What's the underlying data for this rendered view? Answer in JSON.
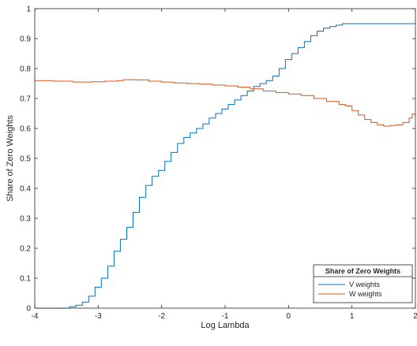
{
  "chart_data": {
    "type": "line",
    "title": "",
    "xlabel": "Log Lambda",
    "ylabel": "Share of Zero Weights",
    "xlim": [
      -4,
      2
    ],
    "ylim": [
      0,
      1
    ],
    "xticks": [
      -4,
      -3,
      -2,
      -1,
      0,
      1,
      2
    ],
    "yticks": [
      0,
      0.1,
      0.2,
      0.3,
      0.4,
      0.5,
      0.6,
      0.7,
      0.8,
      0.9,
      1
    ],
    "grid": false,
    "legend": {
      "title": "Share of Zero Weights",
      "placement": "bottom-right"
    },
    "series": [
      {
        "name": "V weights",
        "color": "#0072BD",
        "step": true,
        "x": [
          -4,
          -3.6,
          -3.45,
          -3.35,
          -3.25,
          -3.15,
          -3.05,
          -2.95,
          -2.85,
          -2.75,
          -2.65,
          -2.55,
          -2.45,
          -2.35,
          -2.25,
          -2.15,
          -2.05,
          -1.95,
          -1.85,
          -1.75,
          -1.65,
          -1.55,
          -1.45,
          -1.35,
          -1.25,
          -1.15,
          -1.05,
          -0.95,
          -0.85,
          -0.75,
          -0.65,
          -0.55,
          -0.45,
          -0.35,
          -0.25,
          -0.15,
          -0.05,
          0.05,
          0.15,
          0.25,
          0.35,
          0.45,
          0.55,
          0.65,
          0.75,
          0.85,
          0.95,
          2
        ],
        "y": [
          0,
          0,
          0.005,
          0.01,
          0.02,
          0.04,
          0.07,
          0.1,
          0.14,
          0.19,
          0.23,
          0.27,
          0.32,
          0.37,
          0.41,
          0.44,
          0.46,
          0.49,
          0.52,
          0.55,
          0.57,
          0.585,
          0.6,
          0.615,
          0.635,
          0.65,
          0.665,
          0.68,
          0.695,
          0.71,
          0.725,
          0.74,
          0.75,
          0.76,
          0.775,
          0.8,
          0.83,
          0.85,
          0.87,
          0.89,
          0.91,
          0.925,
          0.935,
          0.94,
          0.945,
          0.95,
          0.95,
          0.95
        ]
      },
      {
        "name": "W weights",
        "color": "#D95319",
        "step": true,
        "x": [
          -4,
          -3.7,
          -3.4,
          -3.1,
          -2.9,
          -2.7,
          -2.6,
          -2.4,
          -2.2,
          -2,
          -1.8,
          -1.6,
          -1.4,
          -1.2,
          -1,
          -0.8,
          -0.6,
          -0.4,
          -0.2,
          0,
          0.2,
          0.4,
          0.6,
          0.8,
          0.9,
          1.0,
          1.1,
          1.2,
          1.3,
          1.4,
          1.5,
          1.6,
          1.7,
          1.8,
          1.9,
          1.95,
          2
        ],
        "y": [
          0.76,
          0.758,
          0.755,
          0.756,
          0.758,
          0.76,
          0.763,
          0.762,
          0.758,
          0.755,
          0.752,
          0.75,
          0.748,
          0.745,
          0.742,
          0.738,
          0.732,
          0.725,
          0.72,
          0.715,
          0.71,
          0.7,
          0.69,
          0.68,
          0.675,
          0.66,
          0.645,
          0.63,
          0.62,
          0.612,
          0.608,
          0.61,
          0.612,
          0.62,
          0.635,
          0.648,
          0.645
        ]
      }
    ]
  }
}
